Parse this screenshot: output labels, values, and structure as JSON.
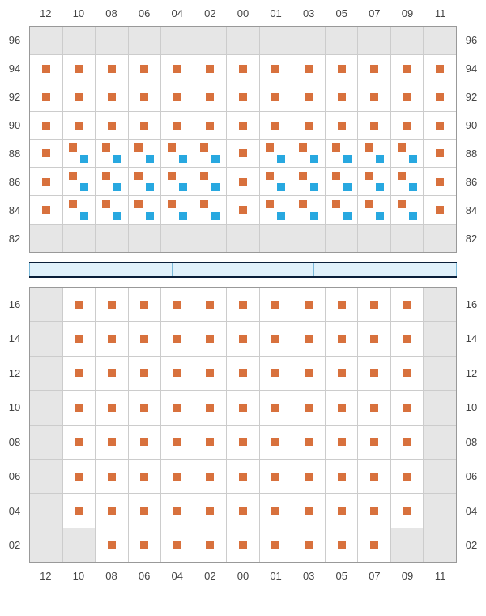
{
  "colors": {
    "orange": "#d8713d",
    "blue": "#28a8e0",
    "grid_bg": "#e6e6e6",
    "cell_occupied": "#ffffff",
    "border": "#999",
    "court_fill": "#e0f1fb",
    "court_border": "#0a1f3a",
    "court_divider": "#7ab8d8"
  },
  "columns": [
    "12",
    "10",
    "08",
    "06",
    "04",
    "02",
    "00",
    "01",
    "03",
    "05",
    "07",
    "09",
    "11"
  ],
  "upper": {
    "rows": [
      "96",
      "94",
      "92",
      "90",
      "88",
      "86",
      "84",
      "82"
    ],
    "cells": {
      "96": {},
      "94": {
        "12": "o",
        "10": "o",
        "08": "o",
        "06": "o",
        "04": "o",
        "02": "o",
        "00": "o",
        "01": "o",
        "03": "o",
        "05": "o",
        "07": "o",
        "09": "o",
        "11": "o"
      },
      "92": {
        "12": "o",
        "10": "o",
        "08": "o",
        "06": "o",
        "04": "o",
        "02": "o",
        "00": "o",
        "01": "o",
        "03": "o",
        "05": "o",
        "07": "o",
        "09": "o",
        "11": "o"
      },
      "90": {
        "12": "o",
        "10": "o",
        "08": "o",
        "06": "o",
        "04": "o",
        "02": "o",
        "00": "o",
        "01": "o",
        "03": "o",
        "05": "o",
        "07": "o",
        "09": "o",
        "11": "o"
      },
      "88": {
        "12": "o",
        "10": "ob",
        "08": "ob",
        "06": "ob",
        "04": "ob",
        "02": "ob",
        "00": "o",
        "01": "ob",
        "03": "ob",
        "05": "ob",
        "07": "ob",
        "09": "ob",
        "11": "o"
      },
      "86": {
        "12": "o",
        "10": "ob",
        "08": "ob",
        "06": "ob",
        "04": "ob",
        "02": "ob",
        "00": "o",
        "01": "ob",
        "03": "ob",
        "05": "ob",
        "07": "ob",
        "09": "ob",
        "11": "o"
      },
      "84": {
        "12": "o",
        "10": "ob",
        "08": "ob",
        "06": "ob",
        "04": "ob",
        "02": "ob",
        "00": "o",
        "01": "ob",
        "03": "ob",
        "05": "ob",
        "07": "ob",
        "09": "ob",
        "11": "o"
      },
      "82": {}
    }
  },
  "court_segments": 3,
  "lower": {
    "rows": [
      "16",
      "14",
      "12",
      "10",
      "08",
      "06",
      "04",
      "02"
    ],
    "cells": {
      "16": {
        "10": "o",
        "08": "o",
        "06": "o",
        "04": "o",
        "02": "o",
        "00": "o",
        "01": "o",
        "03": "o",
        "05": "o",
        "07": "o",
        "09": "o"
      },
      "14": {
        "10": "o",
        "08": "o",
        "06": "o",
        "04": "o",
        "02": "o",
        "00": "o",
        "01": "o",
        "03": "o",
        "05": "o",
        "07": "o",
        "09": "o"
      },
      "12": {
        "10": "o",
        "08": "o",
        "06": "o",
        "04": "o",
        "02": "o",
        "00": "o",
        "01": "o",
        "03": "o",
        "05": "o",
        "07": "o",
        "09": "o"
      },
      "10": {
        "10": "o",
        "08": "o",
        "06": "o",
        "04": "o",
        "02": "o",
        "00": "o",
        "01": "o",
        "03": "o",
        "05": "o",
        "07": "o",
        "09": "o"
      },
      "08": {
        "10": "o",
        "08": "o",
        "06": "o",
        "04": "o",
        "02": "o",
        "00": "o",
        "01": "o",
        "03": "o",
        "05": "o",
        "07": "o",
        "09": "o"
      },
      "06": {
        "10": "o",
        "08": "o",
        "06": "o",
        "04": "o",
        "02": "o",
        "00": "o",
        "01": "o",
        "03": "o",
        "05": "o",
        "07": "o",
        "09": "o"
      },
      "04": {
        "10": "o",
        "08": "o",
        "06": "o",
        "04": "o",
        "02": "o",
        "00": "o",
        "01": "o",
        "03": "o",
        "05": "o",
        "07": "o",
        "09": "o"
      },
      "02": {
        "08": "o",
        "06": "o",
        "04": "o",
        "02": "o",
        "00": "o",
        "01": "o",
        "03": "o",
        "05": "o",
        "07": "o"
      }
    }
  }
}
